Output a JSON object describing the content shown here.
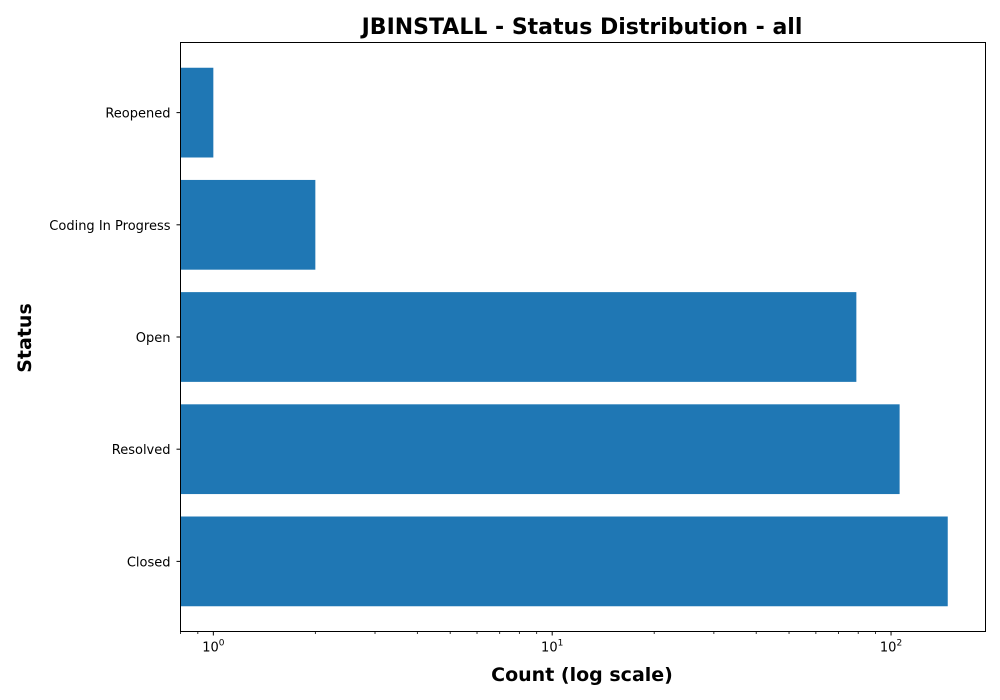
{
  "chart_data": {
    "type": "bar",
    "orientation": "horizontal",
    "title": "JBINSTALL - Status Distribution - all",
    "xlabel": "Count (log scale)",
    "ylabel": "Status",
    "xscale": "log",
    "xlim": [
      0.8,
      190
    ],
    "x_ticks": [
      {
        "value": 1,
        "base": "10",
        "exp": "0"
      },
      {
        "value": 10,
        "base": "10",
        "exp": "1"
      },
      {
        "value": 100,
        "base": "10",
        "exp": "2"
      }
    ],
    "categories": [
      "Closed",
      "Resolved",
      "Open",
      "Coding In Progress",
      "Reopened"
    ],
    "values": [
      147,
      106,
      79,
      2,
      1
    ],
    "bar_color": "#1f77b4",
    "grid": false,
    "legend": "none"
  }
}
